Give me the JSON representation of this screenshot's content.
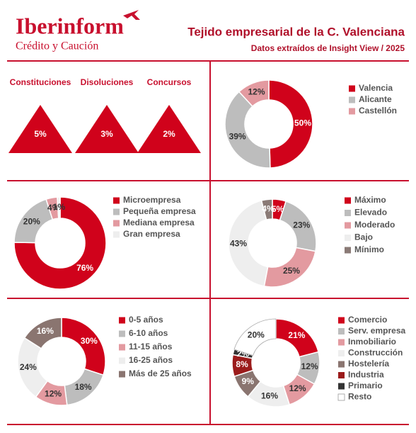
{
  "header": {
    "logo": "Iberinform",
    "logo_sub": "Crédito y Caución",
    "title": "Tejido empresarial de la C. Valenciana",
    "subtitle": "Datos extraídos de Insight View / 2025"
  },
  "indicators": [
    {
      "label": "Constituciones",
      "value": "5%"
    },
    {
      "label": "Disoluciones",
      "value": "3%"
    },
    {
      "label": "Concursos",
      "value": "2%"
    }
  ],
  "chart_data": [
    {
      "type": "donut",
      "categories": [
        "Valencia",
        "Alicante",
        "Castellón"
      ],
      "values": [
        50,
        39,
        12
      ],
      "value_labels": [
        "50%",
        "39%",
        "12%"
      ],
      "colors": [
        "#d0021b",
        "#bdbdbd",
        "#e39aa0"
      ]
    },
    {
      "type": "donut",
      "categories": [
        "Microempresa",
        "Pequeña empresa",
        "Mediana empresa",
        "Gran empresa"
      ],
      "values": [
        76,
        20,
        4,
        1
      ],
      "value_labels": [
        "76%",
        "20%",
        "4%",
        "1%"
      ],
      "colors": [
        "#d0021b",
        "#bdbdbd",
        "#e39aa0",
        "#eeeeee"
      ]
    },
    {
      "type": "donut",
      "categories": [
        "Máximo",
        "Elevado",
        "Moderado",
        "Bajo",
        "Mínimo"
      ],
      "values": [
        5,
        23,
        25,
        43,
        4
      ],
      "value_labels": [
        "5%",
        "23%",
        "25%",
        "43%",
        "4%"
      ],
      "colors": [
        "#d0021b",
        "#bdbdbd",
        "#e39aa0",
        "#eeeeee",
        "#8a7a76"
      ]
    },
    {
      "type": "donut",
      "categories": [
        "0-5 años",
        "6-10 años",
        "11-15 años",
        "16-25 años",
        "Más de 25 años"
      ],
      "values": [
        30,
        18,
        12,
        24,
        16
      ],
      "value_labels": [
        "30%",
        "18%",
        "12%",
        "24%",
        "16%"
      ],
      "colors": [
        "#d0021b",
        "#bdbdbd",
        "#e39aa0",
        "#eeeeee",
        "#8a7570"
      ]
    },
    {
      "type": "donut",
      "categories": [
        "Comercio",
        "Serv. empresa",
        "Inmobiliario",
        "Construcción",
        "Hostelería",
        "Industria",
        "Primario",
        "Resto"
      ],
      "values": [
        21,
        12,
        12,
        16,
        9,
        8,
        2,
        20
      ],
      "value_labels": [
        "21%",
        "12%",
        "12%",
        "16%",
        "9%",
        "8%",
        "2%",
        "20%"
      ],
      "colors": [
        "#d0021b",
        "#bdbdbd",
        "#e39aa0",
        "#eeeeee",
        "#8a7570",
        "#9b1b1b",
        "#333333",
        "#ffffff"
      ]
    }
  ]
}
